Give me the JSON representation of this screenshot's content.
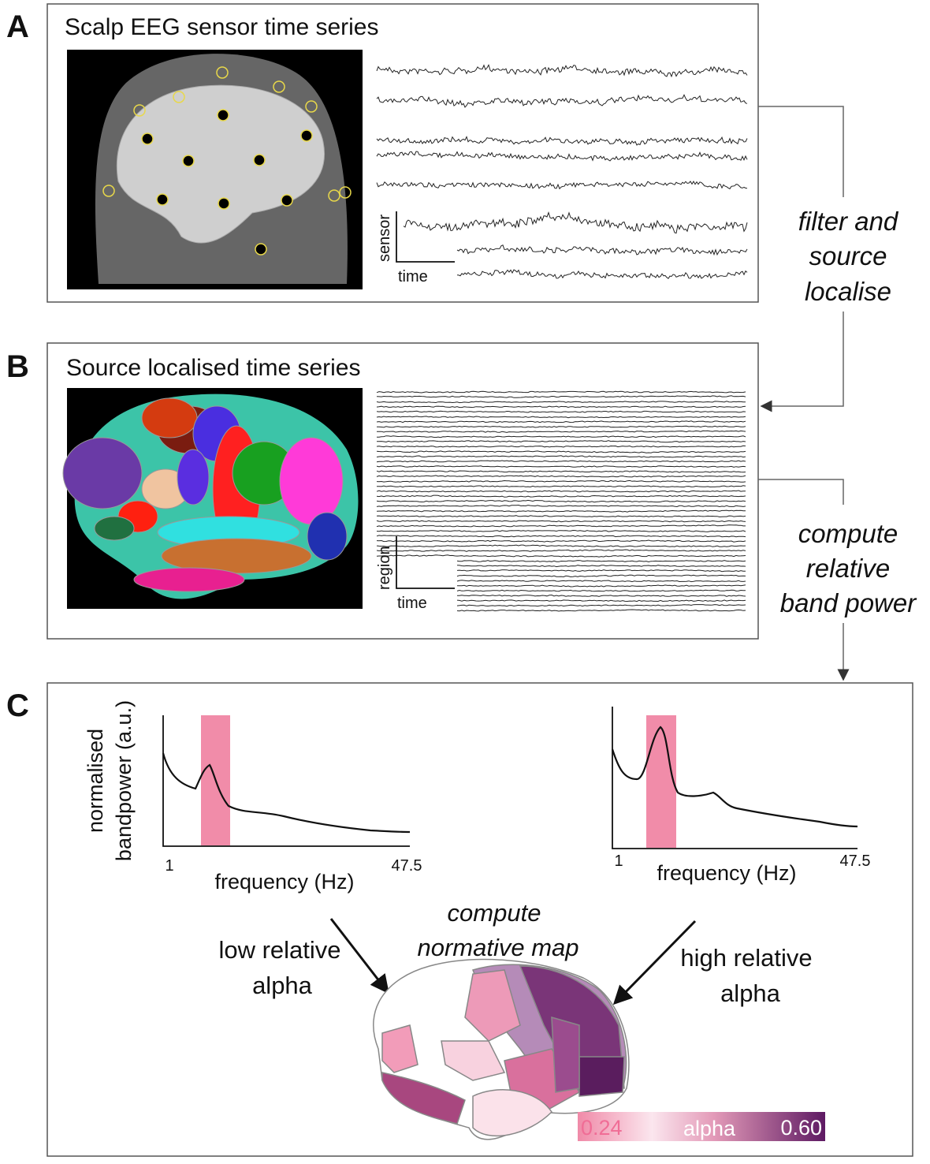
{
  "panels": [
    {
      "label": "A",
      "title": "Scalp EEG sensor time series",
      "axis_labels": {
        "y": "sensor",
        "x": "time"
      }
    },
    {
      "label": "B",
      "title": "Source localised time series",
      "axis_labels": {
        "y": "region",
        "x": "time"
      }
    },
    {
      "label": "C",
      "plots": [
        {
          "y_label": [
            "normalised",
            "bandpower (a.u.)"
          ],
          "x_label": "frequency (Hz)",
          "x_start": "1",
          "x_end": "47.5"
        },
        {
          "x_label": "frequency (Hz)",
          "x_start": "1",
          "x_end": "47.5"
        }
      ],
      "map_title": [
        "compute",
        "normative map"
      ],
      "left_annotation": [
        "low relative",
        "alpha"
      ],
      "right_annotation": [
        "high relative",
        "alpha"
      ],
      "colorbar": {
        "min": "0.24",
        "label": "alpha",
        "max": "0.60"
      }
    }
  ],
  "steps": [
    [
      "filter and",
      "source",
      "localise"
    ],
    [
      "compute",
      "relative",
      "band power"
    ]
  ]
}
